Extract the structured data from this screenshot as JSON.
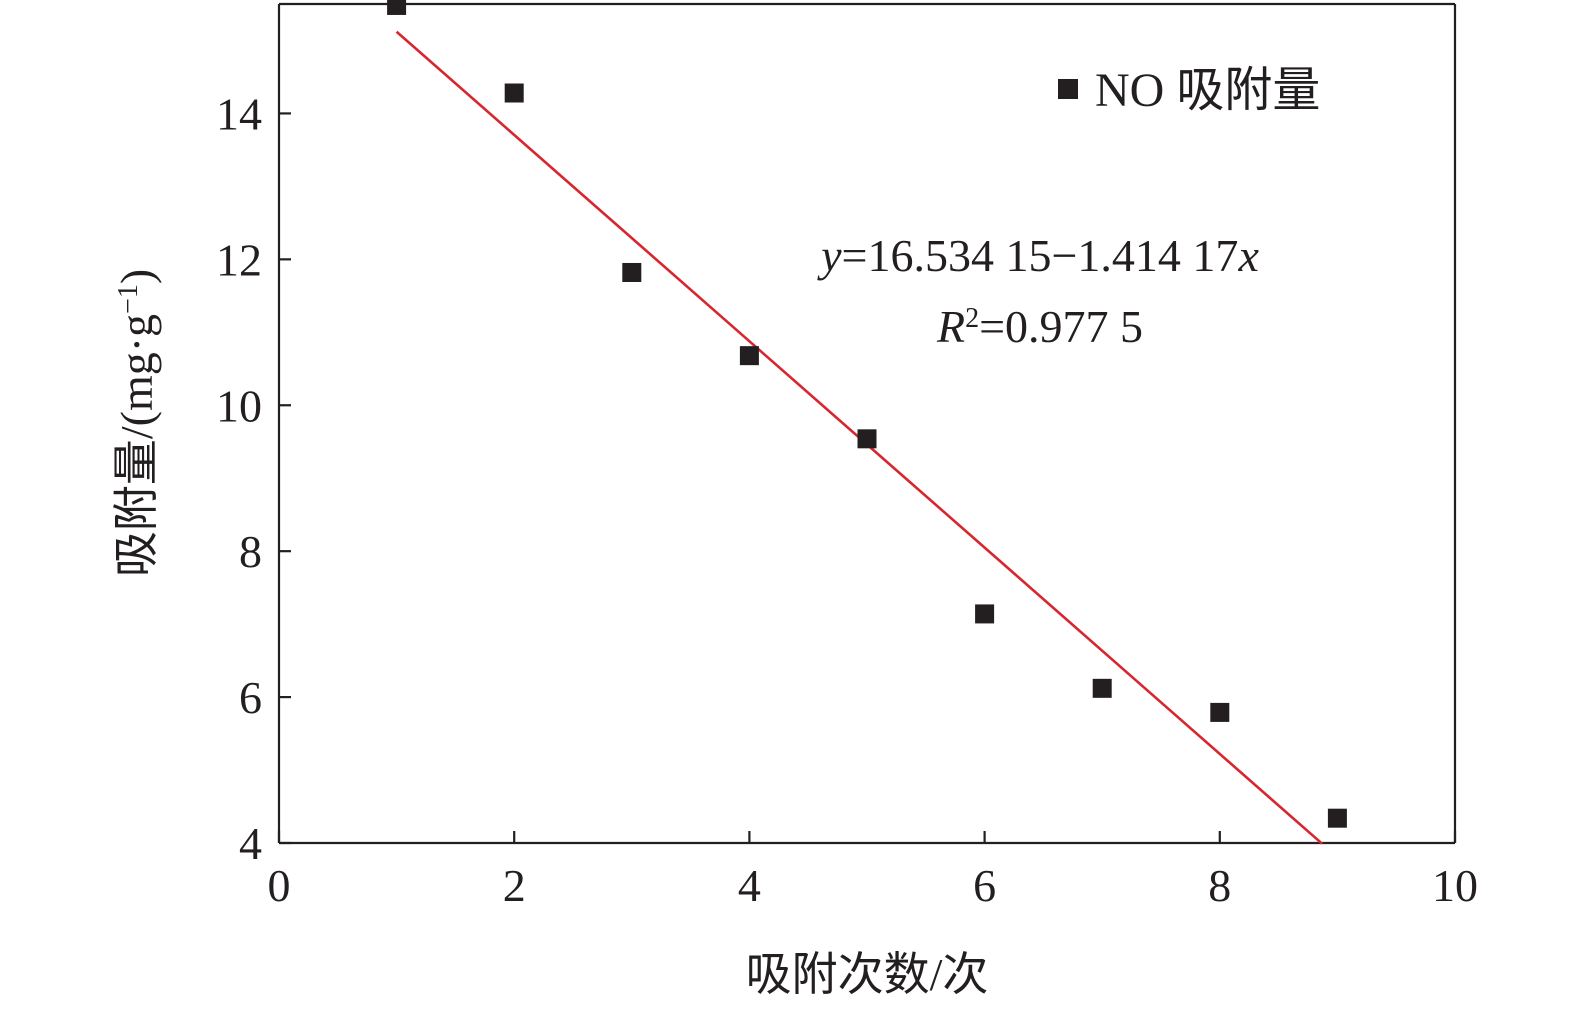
{
  "chart_data": {
    "type": "scatter",
    "xlabel": "吸附次数/次",
    "ylabel": "吸附量/(mg·g",
    "ylabel_sup": "−1",
    "ylabel_close": ")",
    "xlim": [
      0,
      10
    ],
    "ylim": [
      4,
      15.5
    ],
    "xticks": [
      0,
      2,
      4,
      6,
      8,
      10
    ],
    "yticks": [
      4,
      6,
      8,
      10,
      12,
      14
    ],
    "grid": false,
    "legend_position": "top-right",
    "series": [
      {
        "name": "NO 吸附量",
        "marker": "square",
        "color": "#231f20",
        "x": [
          1,
          2,
          3,
          4,
          5,
          6,
          7,
          8,
          9
        ],
        "y": [
          15.48,
          14.28,
          11.82,
          10.68,
          9.54,
          7.14,
          6.12,
          5.79,
          4.34
        ]
      }
    ],
    "fit": {
      "color": "#d7262d",
      "intercept": 16.53415,
      "slope": -1.41417,
      "x_range": [
        1,
        8.87
      ]
    },
    "annotations": {
      "eq_y": "y",
      "eq_rest": "=16.534 15−1.414 17",
      "eq_x": "x",
      "r2_R": "R",
      "r2_sup": "2",
      "r2_rest": "=0.977 5"
    }
  }
}
